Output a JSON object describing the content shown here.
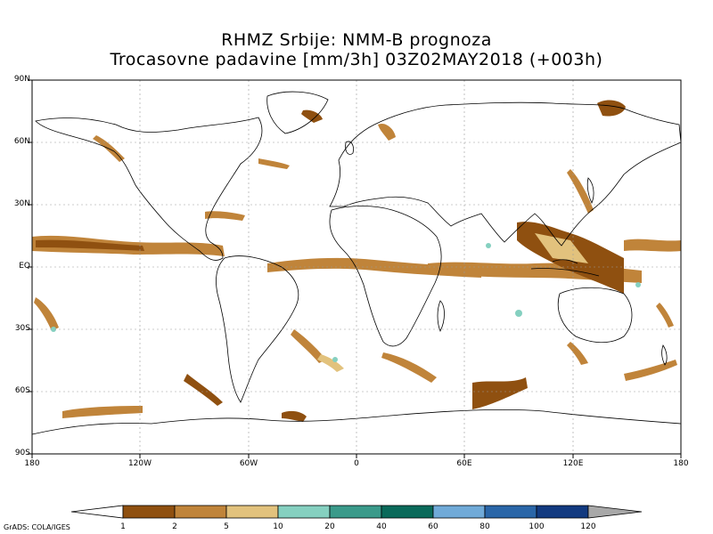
{
  "header": {
    "title_line1": "RHMZ Srbije: NMM-B prognoza",
    "title_line2": "Trocasovne padavine [mm/3h] 03Z02MAY2018 (+003h)"
  },
  "map": {
    "lat_labels": [
      "90N",
      "60N",
      "30N",
      "EQ",
      "30S",
      "60S",
      "90S"
    ],
    "lon_labels": [
      "180",
      "120W",
      "60W",
      "0",
      "60E",
      "120E",
      "180"
    ],
    "lat_range": [
      -90,
      90
    ],
    "lon_range": [
      -180,
      180
    ]
  },
  "colorbar": {
    "labels": [
      "1",
      "2",
      "5",
      "10",
      "20",
      "40",
      "60",
      "80",
      "100",
      "120"
    ],
    "colors": [
      "#8f5010",
      "#c0843a",
      "#e2c27d",
      "#85d0c0",
      "#3a9a8a",
      "#0a6a5a",
      "#70aad8",
      "#2a66a8",
      "#123a80",
      "#a8a8a8"
    ],
    "end_left_color": "#ffffff",
    "end_right_color": "#a8a8a8"
  },
  "credit": "GrADS: COLA/IGES"
}
